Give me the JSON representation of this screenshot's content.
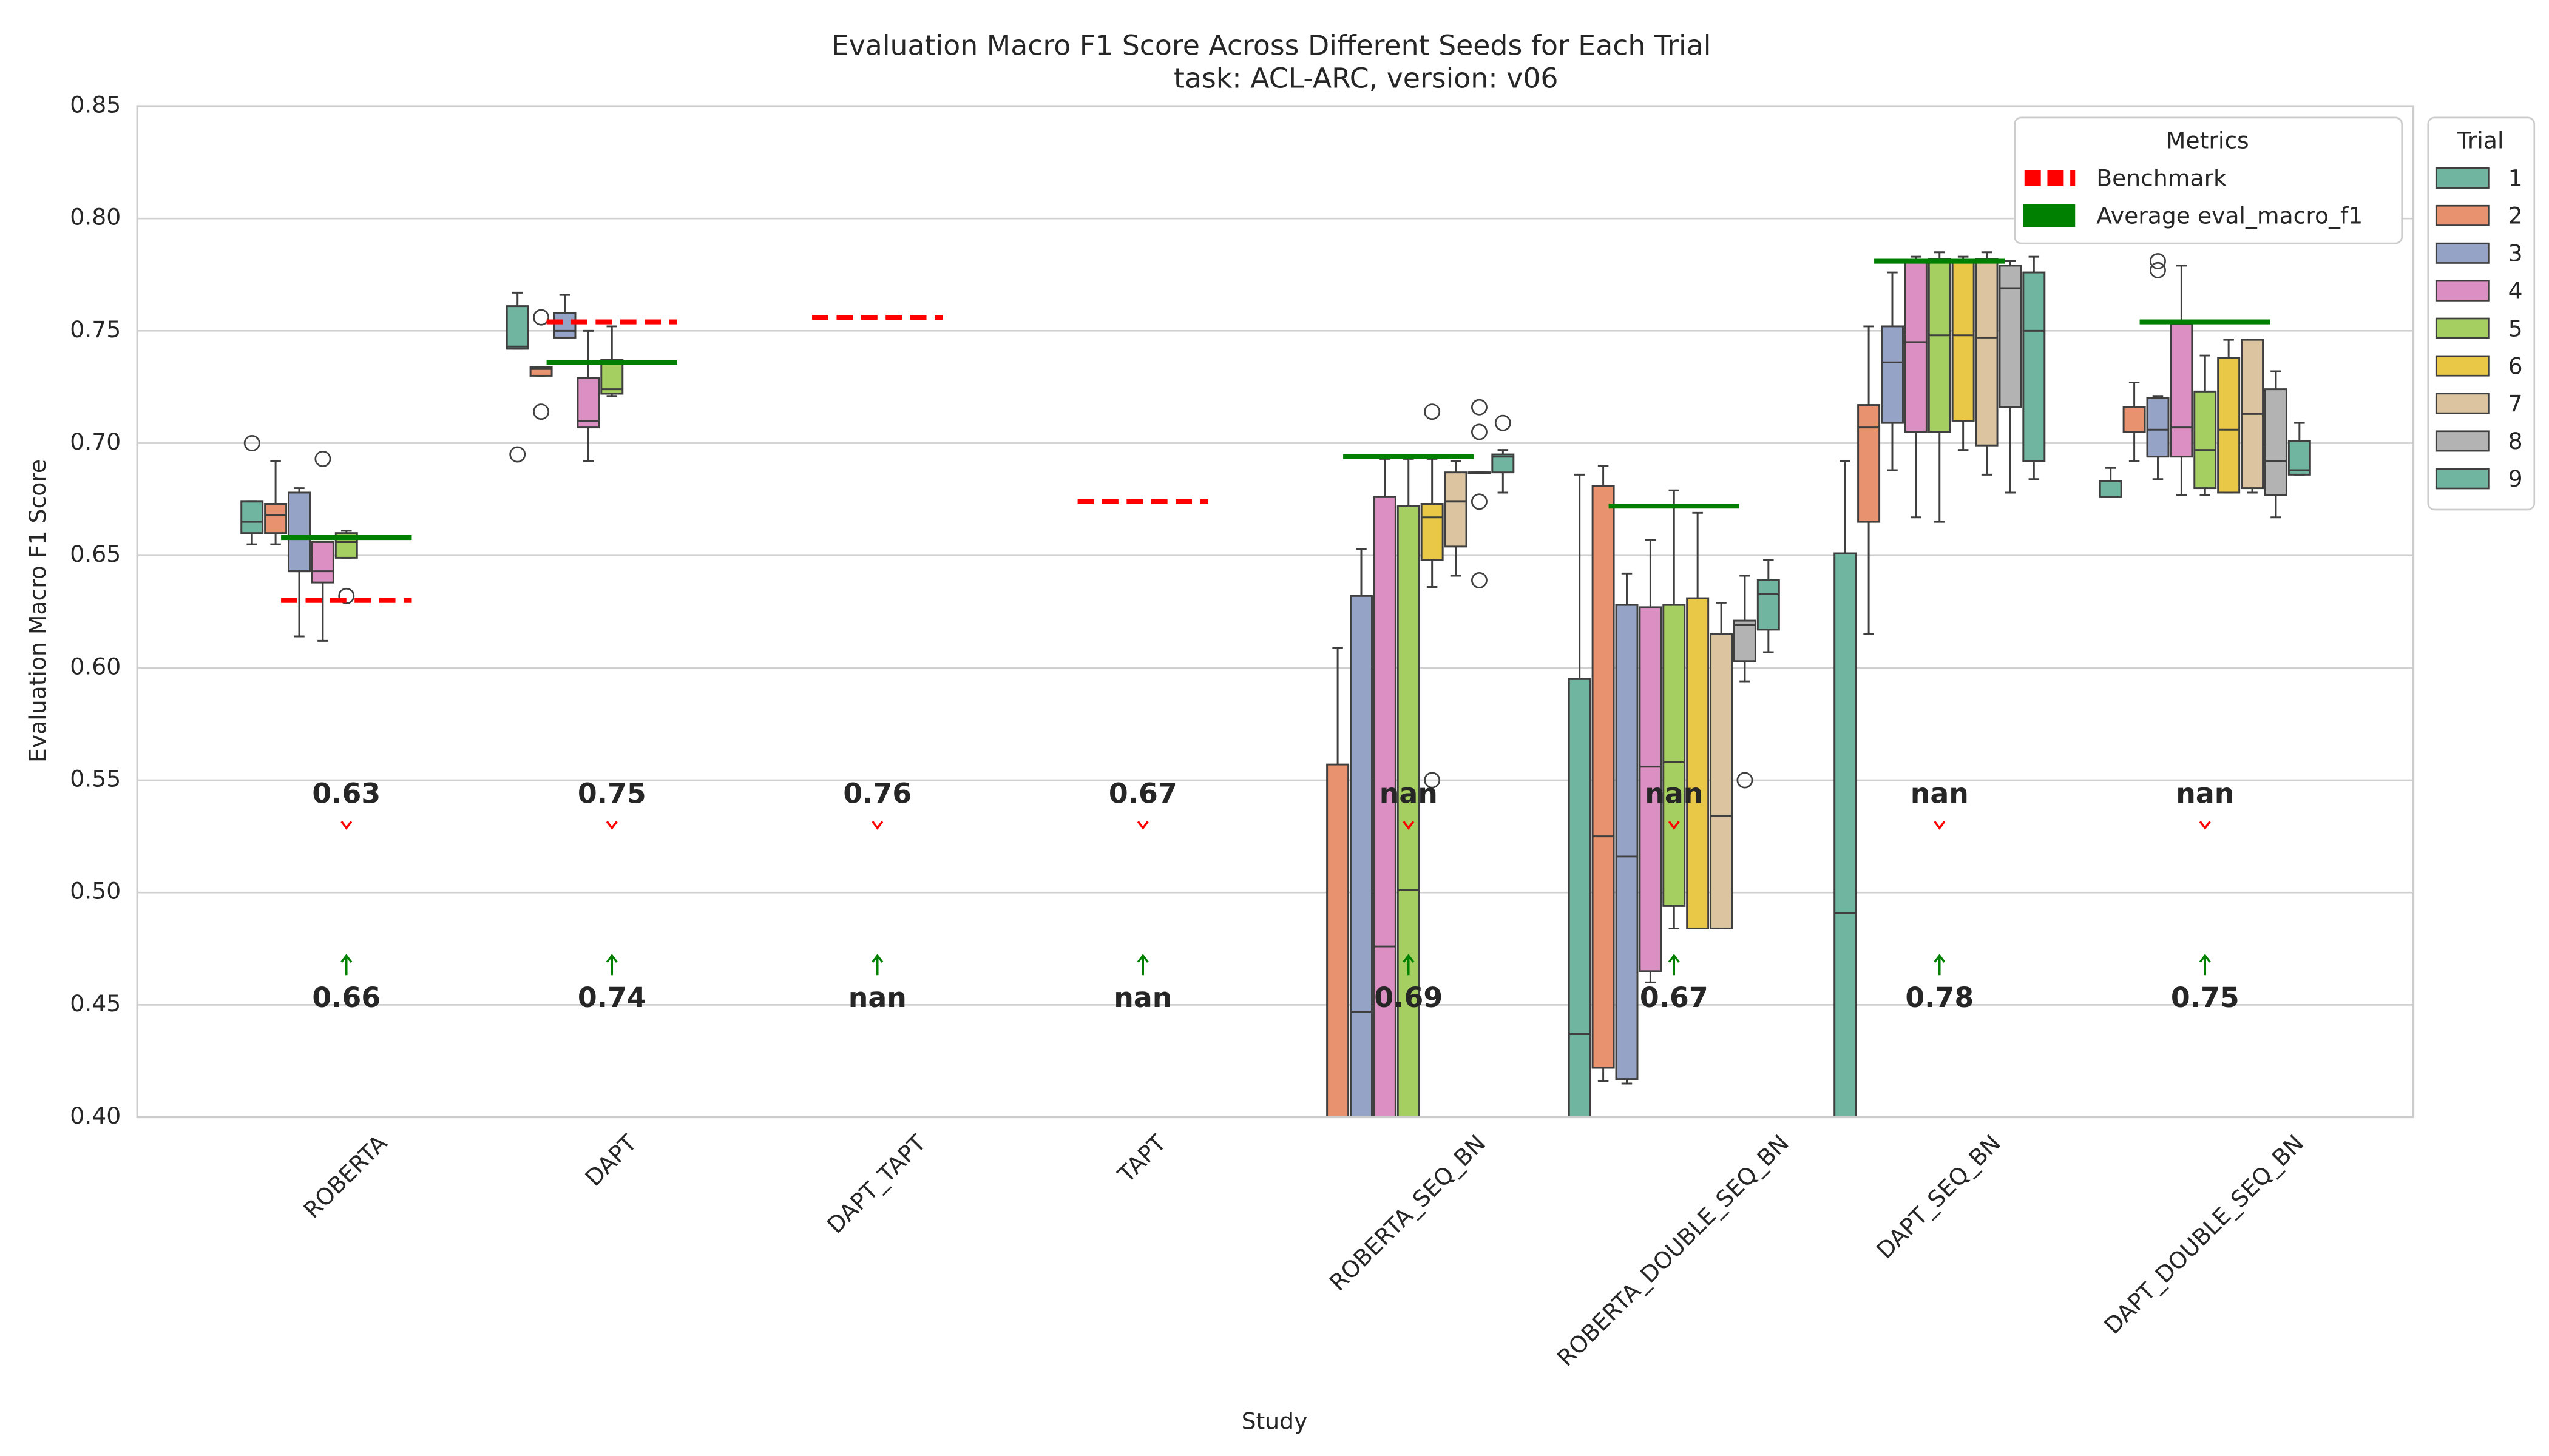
{
  "chart_data": {
    "type": "box",
    "title": "Evaluation Macro F1 Score Across Different Seeds for Each Trial",
    "subtitle": "task: ACL-ARC, version: v06",
    "xlabel": "Study",
    "ylabel": "Evaluation Macro F1 Score",
    "categories": [
      "ROBERTA",
      "DAPT",
      "DAPT_TAPT",
      "TAPT",
      "ROBERTA_SEQ_BN",
      "ROBERTA_DOUBLE_SEQ_BN",
      "DAPT_SEQ_BN",
      "DAPT_DOUBLE_SEQ_BN"
    ],
    "ylim": [
      0.4,
      0.85
    ],
    "yticks": [
      {
        "value": 0.4,
        "label": "0.40"
      },
      0.45,
      {
        "value": 0.5,
        "label": "0.50"
      },
      0.55,
      {
        "value": 0.6,
        "label": "0.60"
      },
      0.65,
      {
        "value": 0.7,
        "label": "0.70"
      },
      0.75,
      {
        "value": 0.8,
        "label": "0.80"
      },
      0.85
    ],
    "grid": true,
    "legend_title": "Trial",
    "metrics_legend_title": "Metrics",
    "benchmark": {
      "name": "Benchmark",
      "color": "#ff0000",
      "values": [
        0.63,
        0.754,
        0.756,
        0.674,
        null,
        null,
        null,
        null
      ],
      "value_labels": [
        "0.63",
        "0.75",
        "0.76",
        "0.67",
        "nan",
        "nan",
        "nan",
        "nan"
      ]
    },
    "average": {
      "name": "Average eval_macro_f1",
      "color": "#008000",
      "values": [
        0.658,
        0.736,
        null,
        null,
        0.694,
        0.672,
        0.781,
        0.754
      ],
      "value_labels": [
        "0.66",
        "0.74",
        "nan",
        "nan",
        "0.69",
        "0.67",
        "0.78",
        "0.75"
      ]
    },
    "series": [
      {
        "name": "1",
        "color": "#6fb5a0",
        "values": [
          {
            "low": 0.655,
            "q1": 0.66,
            "median": 0.665,
            "q3": 0.674,
            "high": 0.674,
            "outliers": [
              0.7
            ]
          },
          {
            "low": 0.742,
            "q1": 0.742,
            "median": 0.743,
            "q3": 0.761,
            "high": 0.767,
            "outliers": [
              0.695
            ]
          },
          null,
          null,
          null,
          {
            "low": 0.3,
            "q1": 0.38,
            "median": 0.437,
            "q3": 0.595,
            "high": 0.686,
            "outliers": []
          },
          {
            "low": 0.3,
            "q1": 0.38,
            "median": 0.491,
            "q3": 0.651,
            "high": 0.692,
            "outliers": []
          },
          {
            "low": 0.676,
            "q1": 0.676,
            "median": 0.676,
            "q3": 0.683,
            "high": 0.689,
            "outliers": []
          }
        ]
      },
      {
        "name": "2",
        "color": "#e8926f",
        "values": [
          {
            "low": 0.655,
            "q1": 0.66,
            "median": 0.668,
            "q3": 0.673,
            "high": 0.692,
            "outliers": []
          },
          {
            "low": 0.73,
            "q1": 0.73,
            "median": 0.733,
            "q3": 0.734,
            "high": 0.734,
            "outliers": [
              0.714,
              0.756
            ]
          },
          null,
          null,
          {
            "low": 0.3,
            "q1": 0.35,
            "median": 0.38,
            "q3": 0.557,
            "high": 0.609,
            "outliers": []
          },
          {
            "low": 0.416,
            "q1": 0.422,
            "median": 0.525,
            "q3": 0.681,
            "high": 0.69,
            "outliers": []
          },
          {
            "low": 0.615,
            "q1": 0.665,
            "median": 0.707,
            "q3": 0.717,
            "high": 0.752,
            "outliers": []
          },
          {
            "low": 0.692,
            "q1": 0.705,
            "median": 0.705,
            "q3": 0.716,
            "high": 0.727,
            "outliers": []
          }
        ]
      },
      {
        "name": "3",
        "color": "#95a3c6",
        "values": [
          {
            "low": 0.614,
            "q1": 0.643,
            "median": 0.643,
            "q3": 0.678,
            "high": 0.68,
            "outliers": []
          },
          {
            "low": 0.747,
            "q1": 0.747,
            "median": 0.75,
            "q3": 0.758,
            "high": 0.766,
            "outliers": []
          },
          null,
          null,
          {
            "low": 0.3,
            "q1": 0.38,
            "median": 0.447,
            "q3": 0.632,
            "high": 0.653,
            "outliers": []
          },
          {
            "low": 0.415,
            "q1": 0.417,
            "median": 0.516,
            "q3": 0.628,
            "high": 0.642,
            "outliers": []
          },
          {
            "low": 0.688,
            "q1": 0.709,
            "median": 0.736,
            "q3": 0.752,
            "high": 0.776,
            "outliers": []
          },
          {
            "low": 0.684,
            "q1": 0.694,
            "median": 0.706,
            "q3": 0.72,
            "high": 0.721,
            "outliers": [
              0.781,
              0.777
            ]
          }
        ]
      },
      {
        "name": "4",
        "color": "#dc8fc3",
        "values": [
          {
            "low": 0.612,
            "q1": 0.638,
            "median": 0.643,
            "q3": 0.656,
            "high": 0.656,
            "outliers": [
              0.693
            ]
          },
          {
            "low": 0.692,
            "q1": 0.707,
            "median": 0.71,
            "q3": 0.729,
            "high": 0.75,
            "outliers": []
          },
          null,
          null,
          {
            "low": 0.3,
            "q1": 0.38,
            "median": 0.476,
            "q3": 0.676,
            "high": 0.693,
            "outliers": []
          },
          {
            "low": 0.46,
            "q1": 0.465,
            "median": 0.556,
            "q3": 0.627,
            "high": 0.657,
            "outliers": []
          },
          {
            "low": 0.667,
            "q1": 0.705,
            "median": 0.745,
            "q3": 0.781,
            "high": 0.783,
            "outliers": []
          },
          {
            "low": 0.677,
            "q1": 0.694,
            "median": 0.707,
            "q3": 0.753,
            "high": 0.779,
            "outliers": []
          }
        ]
      },
      {
        "name": "5",
        "color": "#a5cf61",
        "values": [
          {
            "low": 0.649,
            "q1": 0.649,
            "median": 0.656,
            "q3": 0.66,
            "high": 0.661,
            "outliers": [
              0.632
            ]
          },
          {
            "low": 0.721,
            "q1": 0.722,
            "median": 0.724,
            "q3": 0.737,
            "high": 0.752,
            "outliers": []
          },
          null,
          null,
          {
            "low": 0.3,
            "q1": 0.39,
            "median": 0.501,
            "q3": 0.672,
            "high": 0.693,
            "outliers": []
          },
          {
            "low": 0.484,
            "q1": 0.494,
            "median": 0.558,
            "q3": 0.628,
            "high": 0.679,
            "outliers": []
          },
          {
            "low": 0.665,
            "q1": 0.705,
            "median": 0.748,
            "q3": 0.782,
            "high": 0.785,
            "outliers": []
          },
          {
            "low": 0.677,
            "q1": 0.68,
            "median": 0.697,
            "q3": 0.723,
            "high": 0.739,
            "outliers": []
          }
        ]
      },
      {
        "name": "6",
        "color": "#e8c846",
        "values": [
          null,
          null,
          null,
          null,
          {
            "low": 0.636,
            "q1": 0.648,
            "median": 0.667,
            "q3": 0.673,
            "high": 0.693,
            "outliers": [
              0.714,
              0.55
            ]
          },
          {
            "low": 0.484,
            "q1": 0.484,
            "median": 0.484,
            "q3": 0.631,
            "high": 0.669,
            "outliers": []
          },
          {
            "low": 0.697,
            "q1": 0.71,
            "median": 0.748,
            "q3": 0.781,
            "high": 0.783,
            "outliers": []
          },
          {
            "low": 0.678,
            "q1": 0.678,
            "median": 0.706,
            "q3": 0.738,
            "high": 0.746,
            "outliers": []
          }
        ]
      },
      {
        "name": "7",
        "color": "#dbc49f",
        "values": [
          null,
          null,
          null,
          null,
          {
            "low": 0.641,
            "q1": 0.654,
            "median": 0.674,
            "q3": 0.687,
            "high": 0.692,
            "outliers": []
          },
          {
            "low": 0.484,
            "q1": 0.484,
            "median": 0.534,
            "q3": 0.615,
            "high": 0.629,
            "outliers": []
          },
          {
            "low": 0.686,
            "q1": 0.699,
            "median": 0.747,
            "q3": 0.782,
            "high": 0.785,
            "outliers": []
          },
          {
            "low": 0.678,
            "q1": 0.68,
            "median": 0.713,
            "q3": 0.746,
            "high": 0.746,
            "outliers": []
          }
        ]
      },
      {
        "name": "8",
        "color": "#b3b3b3",
        "values": [
          null,
          null,
          null,
          null,
          {
            "low": 0.687,
            "q1": 0.687,
            "median": 0.687,
            "q3": 0.687,
            "high": 0.687,
            "outliers": [
              0.716,
              0.705,
              0.674,
              0.639
            ]
          },
          {
            "low": 0.594,
            "q1": 0.603,
            "median": 0.619,
            "q3": 0.621,
            "high": 0.641,
            "outliers": [
              0.55
            ]
          },
          {
            "low": 0.678,
            "q1": 0.716,
            "median": 0.769,
            "q3": 0.779,
            "high": 0.781,
            "outliers": []
          },
          {
            "low": 0.667,
            "q1": 0.677,
            "median": 0.692,
            "q3": 0.724,
            "high": 0.732,
            "outliers": []
          }
        ]
      },
      {
        "name": "9",
        "color": "#6fb5a0",
        "values": [
          null,
          null,
          null,
          null,
          {
            "low": 0.678,
            "q1": 0.687,
            "median": 0.694,
            "q3": 0.695,
            "high": 0.697,
            "outliers": [
              0.709
            ]
          },
          {
            "low": 0.607,
            "q1": 0.617,
            "median": 0.633,
            "q3": 0.639,
            "high": 0.648,
            "outliers": []
          },
          {
            "low": 0.684,
            "q1": 0.692,
            "median": 0.75,
            "q3": 0.776,
            "high": 0.783,
            "outliers": []
          },
          {
            "low": 0.686,
            "q1": 0.686,
            "median": 0.688,
            "q3": 0.701,
            "high": 0.709,
            "outliers": []
          }
        ]
      }
    ]
  }
}
